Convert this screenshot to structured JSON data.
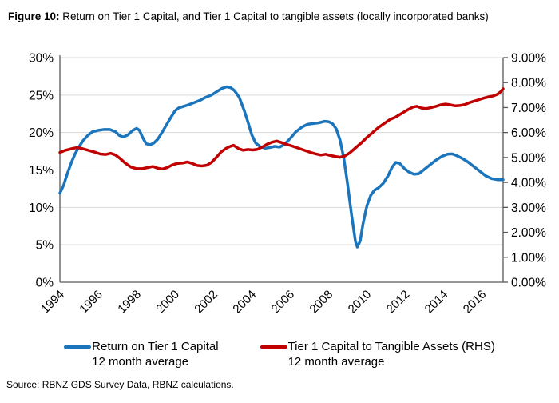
{
  "header": {
    "figure_label": "Figure 10:",
    "title_rest": " Return on Tier 1 Capital, and Tier 1 Capital to tangible assets (locally incorporated banks)"
  },
  "legend": [
    {
      "label": "Return on Tier 1 Capital",
      "sublabel": "12 month average",
      "color": "#1b75bc"
    },
    {
      "label": "Tier 1 Capital to Tangible Assets (RHS)",
      "sublabel": "12 month average",
      "color": "#c00000"
    }
  ],
  "source": "Source: RBNZ GDS Survey Data, RBNZ calculations.",
  "chart_data": {
    "type": "line",
    "title": "Return on Tier 1 Capital, and Tier 1 Capital to tangible assets (locally incorporated banks)",
    "grid": true,
    "colors": {
      "grid": "#d9d9d9",
      "axis": "#595959"
    },
    "x_axis": {
      "range": [
        1994,
        2017.1
      ],
      "ticks": [
        {
          "value": 1994,
          "label": "1994"
        },
        {
          "value": 1996,
          "label": "1996"
        },
        {
          "value": 1998,
          "label": "1998"
        },
        {
          "value": 2000,
          "label": "2000"
        },
        {
          "value": 2002,
          "label": "2002"
        },
        {
          "value": 2004,
          "label": "2004"
        },
        {
          "value": 2006,
          "label": "2006"
        },
        {
          "value": 2008,
          "label": "2008"
        },
        {
          "value": 2010,
          "label": "2010"
        },
        {
          "value": 2012,
          "label": "2012"
        },
        {
          "value": 2014,
          "label": "2014"
        },
        {
          "value": 2016,
          "label": "2016"
        }
      ]
    },
    "left_axis": {
      "range": [
        0,
        30
      ],
      "ticks": [
        {
          "value": 0,
          "label": "0%"
        },
        {
          "value": 5,
          "label": "5%"
        },
        {
          "value": 10,
          "label": "10%"
        },
        {
          "value": 15,
          "label": "15%"
        },
        {
          "value": 20,
          "label": "20%"
        },
        {
          "value": 25,
          "label": "25%"
        },
        {
          "value": 30,
          "label": "30%"
        }
      ]
    },
    "right_axis": {
      "range": [
        0,
        9
      ],
      "ticks": [
        {
          "value": 0,
          "label": "0.00%"
        },
        {
          "value": 1,
          "label": "1.00%"
        },
        {
          "value": 2,
          "label": "2.00%"
        },
        {
          "value": 3,
          "label": "3.00%"
        },
        {
          "value": 4,
          "label": "4.00%"
        },
        {
          "value": 5,
          "label": "5.00%"
        },
        {
          "value": 6,
          "label": "6.00%"
        },
        {
          "value": 7,
          "label": "7.00%"
        },
        {
          "value": 8,
          "label": "8.00%"
        },
        {
          "value": 9,
          "label": "9.00%"
        }
      ]
    },
    "series": [
      {
        "name": "Return on Tier 1 Capital 12 month average",
        "axis": "left",
        "color": "#1b75bc",
        "points": [
          [
            1994.0,
            11.9
          ],
          [
            1994.2,
            13.0
          ],
          [
            1994.4,
            14.6
          ],
          [
            1994.6,
            16.0
          ],
          [
            1994.8,
            17.2
          ],
          [
            1995.0,
            18.1
          ],
          [
            1995.2,
            18.9
          ],
          [
            1995.45,
            19.6
          ],
          [
            1995.7,
            20.1
          ],
          [
            1996.0,
            20.3
          ],
          [
            1996.3,
            20.4
          ],
          [
            1996.6,
            20.4
          ],
          [
            1996.9,
            20.1
          ],
          [
            1997.1,
            19.6
          ],
          [
            1997.3,
            19.4
          ],
          [
            1997.55,
            19.7
          ],
          [
            1997.8,
            20.3
          ],
          [
            1998.0,
            20.55
          ],
          [
            1998.15,
            20.3
          ],
          [
            1998.3,
            19.4
          ],
          [
            1998.5,
            18.5
          ],
          [
            1998.7,
            18.35
          ],
          [
            1998.9,
            18.6
          ],
          [
            1999.1,
            19.1
          ],
          [
            1999.3,
            19.9
          ],
          [
            1999.55,
            21.0
          ],
          [
            1999.8,
            22.1
          ],
          [
            2000.0,
            22.9
          ],
          [
            2000.2,
            23.3
          ],
          [
            2000.45,
            23.5
          ],
          [
            2000.7,
            23.7
          ],
          [
            2001.0,
            24.0
          ],
          [
            2001.3,
            24.3
          ],
          [
            2001.6,
            24.7
          ],
          [
            2001.9,
            25.0
          ],
          [
            2002.2,
            25.5
          ],
          [
            2002.45,
            25.9
          ],
          [
            2002.7,
            26.1
          ],
          [
            2002.9,
            26.0
          ],
          [
            2003.1,
            25.6
          ],
          [
            2003.35,
            24.7
          ],
          [
            2003.6,
            23.0
          ],
          [
            2003.8,
            21.4
          ],
          [
            2004.0,
            19.7
          ],
          [
            2004.2,
            18.6
          ],
          [
            2004.45,
            18.1
          ],
          [
            2004.7,
            17.9
          ],
          [
            2004.95,
            18.0
          ],
          [
            2005.2,
            18.15
          ],
          [
            2005.45,
            18.05
          ],
          [
            2005.7,
            18.4
          ],
          [
            2006.0,
            19.2
          ],
          [
            2006.3,
            20.1
          ],
          [
            2006.6,
            20.7
          ],
          [
            2006.9,
            21.1
          ],
          [
            2007.2,
            21.2
          ],
          [
            2007.5,
            21.3
          ],
          [
            2007.8,
            21.5
          ],
          [
            2008.0,
            21.45
          ],
          [
            2008.2,
            21.2
          ],
          [
            2008.4,
            20.5
          ],
          [
            2008.6,
            19.0
          ],
          [
            2008.8,
            16.5
          ],
          [
            2009.0,
            13.0
          ],
          [
            2009.2,
            9.0
          ],
          [
            2009.4,
            5.5
          ],
          [
            2009.5,
            4.7
          ],
          [
            2009.65,
            5.5
          ],
          [
            2009.8,
            7.8
          ],
          [
            2010.0,
            10.2
          ],
          [
            2010.2,
            11.6
          ],
          [
            2010.4,
            12.3
          ],
          [
            2010.6,
            12.6
          ],
          [
            2010.85,
            13.2
          ],
          [
            2011.1,
            14.2
          ],
          [
            2011.3,
            15.3
          ],
          [
            2011.5,
            16.0
          ],
          [
            2011.7,
            15.9
          ],
          [
            2011.95,
            15.2
          ],
          [
            2012.2,
            14.7
          ],
          [
            2012.45,
            14.45
          ],
          [
            2012.7,
            14.5
          ],
          [
            2013.0,
            15.1
          ],
          [
            2013.3,
            15.7
          ],
          [
            2013.6,
            16.3
          ],
          [
            2013.9,
            16.8
          ],
          [
            2014.2,
            17.1
          ],
          [
            2014.45,
            17.15
          ],
          [
            2014.7,
            16.9
          ],
          [
            2015.0,
            16.5
          ],
          [
            2015.3,
            16.0
          ],
          [
            2015.6,
            15.4
          ],
          [
            2015.9,
            14.8
          ],
          [
            2016.2,
            14.2
          ],
          [
            2016.5,
            13.85
          ],
          [
            2016.8,
            13.7
          ],
          [
            2017.1,
            13.7
          ]
        ]
      },
      {
        "name": "Tier 1 Capital to Tangible Assets (RHS) 12 month average",
        "axis": "right",
        "color": "#c00000",
        "points": [
          [
            1994.0,
            5.2
          ],
          [
            1994.3,
            5.29
          ],
          [
            1994.6,
            5.35
          ],
          [
            1994.9,
            5.4
          ],
          [
            1995.2,
            5.35
          ],
          [
            1995.5,
            5.28
          ],
          [
            1995.8,
            5.22
          ],
          [
            1996.1,
            5.14
          ],
          [
            1996.4,
            5.12
          ],
          [
            1996.65,
            5.17
          ],
          [
            1996.9,
            5.1
          ],
          [
            1997.15,
            4.95
          ],
          [
            1997.4,
            4.78
          ],
          [
            1997.7,
            4.62
          ],
          [
            1998.0,
            4.55
          ],
          [
            1998.3,
            4.55
          ],
          [
            1998.6,
            4.6
          ],
          [
            1998.85,
            4.64
          ],
          [
            1999.1,
            4.57
          ],
          [
            1999.35,
            4.54
          ],
          [
            1999.6,
            4.6
          ],
          [
            1999.85,
            4.7
          ],
          [
            2000.1,
            4.76
          ],
          [
            2000.4,
            4.78
          ],
          [
            2000.65,
            4.82
          ],
          [
            2000.9,
            4.76
          ],
          [
            2001.15,
            4.68
          ],
          [
            2001.4,
            4.66
          ],
          [
            2001.65,
            4.69
          ],
          [
            2001.9,
            4.8
          ],
          [
            2002.15,
            5.0
          ],
          [
            2002.4,
            5.22
          ],
          [
            2002.65,
            5.36
          ],
          [
            2002.9,
            5.45
          ],
          [
            2003.05,
            5.49
          ],
          [
            2003.3,
            5.36
          ],
          [
            2003.55,
            5.29
          ],
          [
            2003.8,
            5.32
          ],
          [
            2004.05,
            5.3
          ],
          [
            2004.3,
            5.33
          ],
          [
            2004.55,
            5.42
          ],
          [
            2004.8,
            5.53
          ],
          [
            2005.05,
            5.61
          ],
          [
            2005.3,
            5.66
          ],
          [
            2005.55,
            5.6
          ],
          [
            2005.8,
            5.53
          ],
          [
            2006.1,
            5.46
          ],
          [
            2006.4,
            5.38
          ],
          [
            2006.7,
            5.3
          ],
          [
            2007.0,
            5.22
          ],
          [
            2007.3,
            5.15
          ],
          [
            2007.6,
            5.1
          ],
          [
            2007.85,
            5.13
          ],
          [
            2008.1,
            5.08
          ],
          [
            2008.35,
            5.04
          ],
          [
            2008.6,
            5.01
          ],
          [
            2008.85,
            5.06
          ],
          [
            2009.1,
            5.18
          ],
          [
            2009.4,
            5.38
          ],
          [
            2009.7,
            5.58
          ],
          [
            2010.0,
            5.8
          ],
          [
            2010.3,
            6.0
          ],
          [
            2010.6,
            6.2
          ],
          [
            2010.9,
            6.36
          ],
          [
            2011.2,
            6.52
          ],
          [
            2011.5,
            6.62
          ],
          [
            2011.8,
            6.76
          ],
          [
            2012.1,
            6.9
          ],
          [
            2012.4,
            7.02
          ],
          [
            2012.6,
            7.05
          ],
          [
            2012.85,
            6.98
          ],
          [
            2013.1,
            6.96
          ],
          [
            2013.35,
            7.0
          ],
          [
            2013.6,
            7.05
          ],
          [
            2013.85,
            7.11
          ],
          [
            2014.1,
            7.14
          ],
          [
            2014.35,
            7.11
          ],
          [
            2014.6,
            7.07
          ],
          [
            2014.85,
            7.08
          ],
          [
            2015.1,
            7.12
          ],
          [
            2015.35,
            7.2
          ],
          [
            2015.6,
            7.26
          ],
          [
            2015.85,
            7.32
          ],
          [
            2016.1,
            7.38
          ],
          [
            2016.35,
            7.43
          ],
          [
            2016.6,
            7.47
          ],
          [
            2016.8,
            7.53
          ],
          [
            2016.95,
            7.62
          ],
          [
            2017.1,
            7.75
          ]
        ]
      }
    ]
  }
}
